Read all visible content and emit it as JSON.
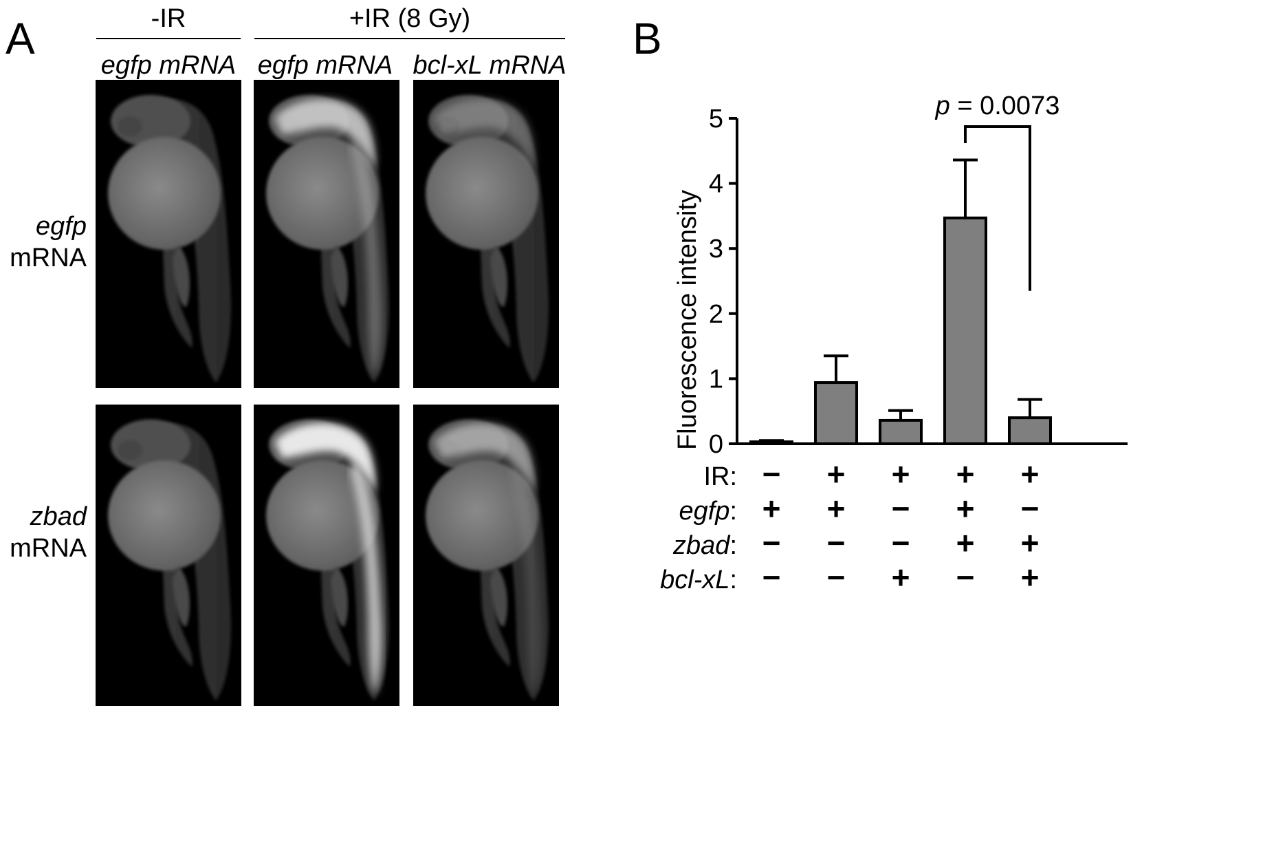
{
  "panel_a": {
    "letter": "A",
    "group_minus": "-IR",
    "group_plus": "+IR (8 Gy)",
    "column_labels": [
      "egfp mRNA",
      "egfp mRNA",
      "bcl-xL mRNA"
    ],
    "row_labels": [
      {
        "gene": "egfp",
        "suffix": "mRNA"
      },
      {
        "gene": "zbad",
        "suffix": "mRNA"
      }
    ]
  },
  "panel_b": {
    "letter": "B"
  },
  "chart_data": {
    "type": "bar",
    "ylabel": "Fluorescence intensity",
    "ylim": [
      0,
      5
    ],
    "yticks": [
      0,
      1,
      2,
      3,
      4,
      5
    ],
    "values": [
      0.03,
      0.94,
      0.36,
      3.47,
      0.4
    ],
    "errors": [
      0.02,
      0.41,
      0.15,
      0.89,
      0.28
    ],
    "bar_color": "#7f7f7f",
    "annotation": {
      "p_symbol": "p",
      "text": " = 0.0073",
      "between": [
        3,
        4
      ]
    },
    "conditions": [
      {
        "label": "IR",
        "signs": [
          "−",
          "+",
          "+",
          "+",
          "+"
        ]
      },
      {
        "label": "egfp",
        "signs": [
          "+",
          "+",
          "−",
          "+",
          "−"
        ]
      },
      {
        "label": "zbad",
        "signs": [
          "−",
          "−",
          "−",
          "+",
          "+"
        ]
      },
      {
        "label": "bcl-xL",
        "signs": [
          "−",
          "−",
          "+",
          "−",
          "+"
        ]
      }
    ]
  }
}
